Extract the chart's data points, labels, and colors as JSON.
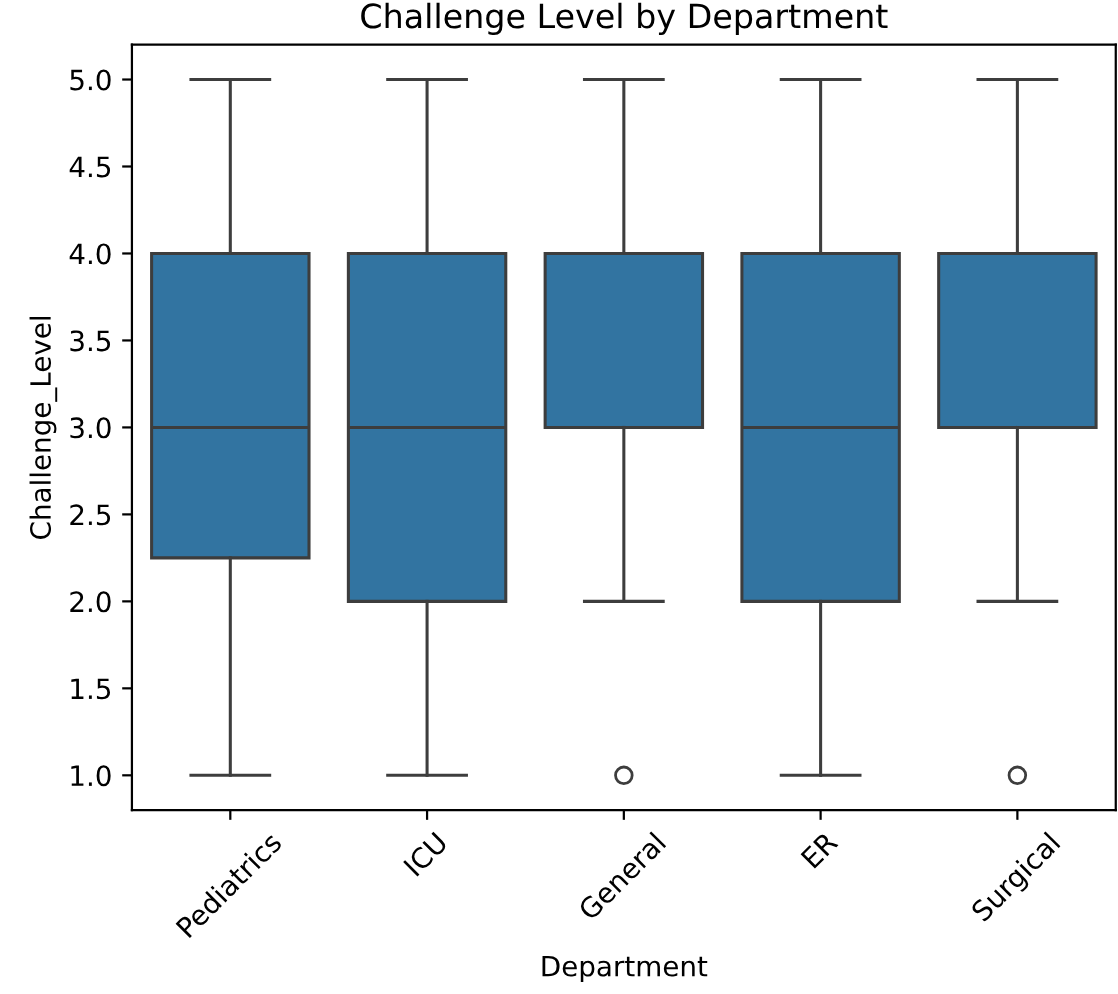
{
  "chart_data": {
    "type": "box",
    "title": "Challenge Level by Department",
    "xlabel": "Department",
    "ylabel": "Challenge_Level",
    "categories": [
      "Pediatrics",
      "ICU",
      "General",
      "ER",
      "Surgical"
    ],
    "color": "#3274a1",
    "boxes": [
      {
        "low": 1,
        "q1": 2.25,
        "median": 3,
        "q3": 4,
        "high": 5
      },
      {
        "low": 1,
        "q1": 2,
        "median": 3,
        "q3": 4,
        "high": 5
      },
      {
        "low": 2,
        "q1": 3,
        "median": 4,
        "q3": 4,
        "high": 5,
        "outliers": [
          1
        ]
      },
      {
        "low": 1,
        "q1": 2,
        "median": 3,
        "q3": 4,
        "high": 5
      },
      {
        "low": 2,
        "q1": 3,
        "median": 4,
        "q3": 4,
        "high": 5,
        "outliers": [
          1
        ]
      }
    ],
    "ylim": [
      0.8,
      5.2
    ],
    "yticks": [
      {
        "value": 1,
        "label": "1.0"
      },
      {
        "value": 1.5,
        "label": "1.5"
      },
      {
        "value": 2,
        "label": "2.0"
      },
      {
        "value": 2.5,
        "label": "2.5"
      },
      {
        "value": 3,
        "label": "3.0"
      },
      {
        "value": 3.5,
        "label": "3.5"
      },
      {
        "value": 4,
        "label": "4.0"
      },
      {
        "value": 4.5,
        "label": "4.5"
      },
      {
        "value": 5,
        "label": "5.0"
      }
    ],
    "grid": false,
    "legend": false
  }
}
